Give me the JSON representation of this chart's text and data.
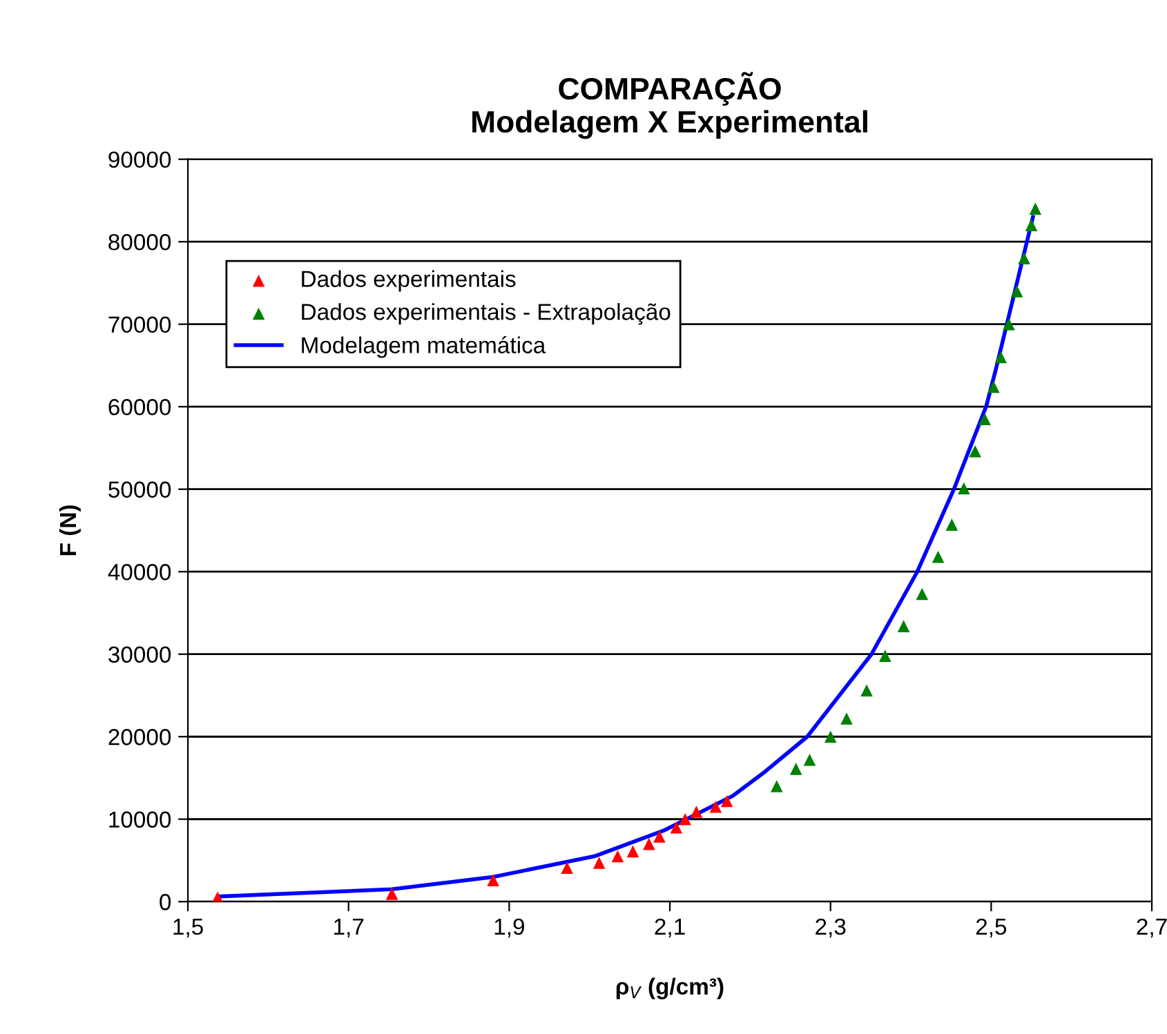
{
  "chart_data": {
    "type": "scatter",
    "title": "COMPARAÇÃO\nModelagem X Experimental",
    "xlabel": "ρ$_{V}$ (g/cm³)",
    "ylabel": "F (N)",
    "xlim": [
      1.5,
      2.7
    ],
    "xticks": [
      {
        "value": 1.5,
        "label": "1,5"
      },
      {
        "value": 1.7,
        "label": "1,7"
      },
      {
        "value": 1.9,
        "label": "1,9"
      },
      {
        "value": 2.1,
        "label": "2,1"
      },
      {
        "value": 2.3,
        "label": "2,3"
      },
      {
        "value": 2.5,
        "label": "2,5"
      },
      {
        "value": 2.7,
        "label": "2,7"
      }
    ],
    "ylim": [
      0,
      90000
    ],
    "yticks": [
      0,
      10000,
      20000,
      30000,
      40000,
      50000,
      60000,
      70000,
      80000,
      90000
    ],
    "grid": "y",
    "legend": "top left",
    "marker": "triangle",
    "series": [
      {
        "name": "Dados experimentais",
        "color": "#ff0000",
        "x": [
          1.537,
          1.754,
          1.88,
          1.972,
          2.012,
          2.035,
          2.054,
          2.074,
          2.087,
          2.108,
          2.119,
          2.133,
          2.157,
          2.171
        ],
        "values": [
          500,
          950,
          2600,
          4100,
          4700,
          5500,
          6100,
          7000,
          7900,
          9000,
          10000,
          10900,
          11500,
          12200
        ]
      },
      {
        "name": "Dados experimentais - Extrapolação",
        "color": "#008000",
        "x": [
          2.233,
          2.257,
          2.274,
          2.3,
          2.32,
          2.345,
          2.368,
          2.391,
          2.414,
          2.434,
          2.451,
          2.466,
          2.48,
          2.492,
          2.503,
          2.512,
          2.522,
          2.532,
          2.541,
          2.55,
          2.555
        ],
        "values": [
          14000,
          16100,
          17200,
          20000,
          22200,
          25600,
          29800,
          33400,
          37300,
          41800,
          45700,
          50100,
          54600,
          58500,
          62400,
          66000,
          70000,
          74000,
          78000,
          82000,
          84000
        ]
      },
      {
        "name": "Modelagem matemática",
        "type": "line",
        "marker": "none",
        "color": "#0000ff",
        "x": [
          1.537,
          1.754,
          1.88,
          2.006,
          2.092,
          2.178,
          2.219,
          2.271,
          2.351,
          2.408,
          2.454,
          2.494,
          2.506,
          2.552
        ],
        "values": [
          620,
          1500,
          3000,
          5500,
          8600,
          12800,
          15800,
          20000,
          30000,
          40000,
          50100,
          60100,
          64600,
          83000
        ]
      }
    ]
  }
}
